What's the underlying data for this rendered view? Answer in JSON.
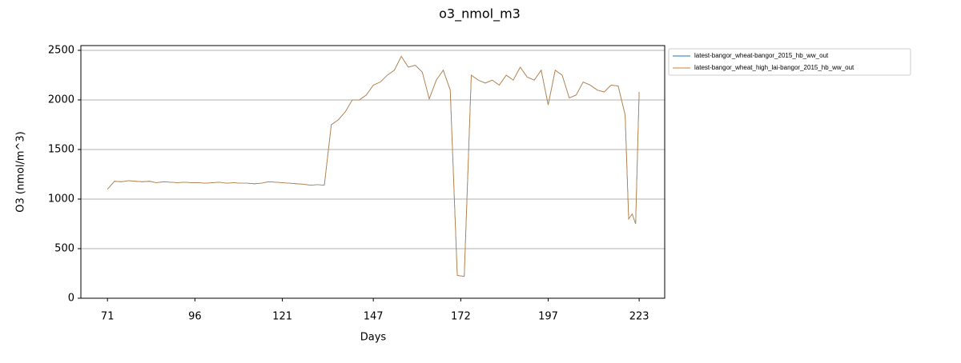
{
  "chart_data": {
    "type": "line",
    "title": "o3_nmol_m3",
    "x_label": "Days",
    "y_label": "O3 (nmol/m^3)",
    "x": [
      71,
      73,
      75,
      77,
      79,
      81,
      83,
      85,
      87,
      89,
      91,
      93,
      95,
      97,
      99,
      101,
      103,
      105,
      107,
      109,
      111,
      113,
      115,
      117,
      119,
      121,
      123,
      125,
      127,
      129,
      131,
      133,
      135,
      137,
      139,
      141,
      143,
      145,
      147,
      149,
      151,
      153,
      155,
      157,
      159,
      161,
      163,
      165,
      167,
      169,
      171,
      173,
      175,
      177,
      179,
      181,
      183,
      185,
      187,
      189,
      191,
      193,
      195,
      197,
      199,
      201,
      203,
      205,
      207,
      209,
      211,
      213,
      215,
      217,
      219,
      220,
      221,
      222,
      223
    ],
    "series": [
      {
        "name": "latest-bangor_wheat-bangor_2015_hb_ww_out",
        "color": "#1f77b4",
        "values": [
          1100,
          1180,
          1175,
          1185,
          1180,
          1175,
          1180,
          1165,
          1175,
          1170,
          1165,
          1170,
          1165,
          1165,
          1160,
          1165,
          1170,
          1160,
          1165,
          1160,
          1160,
          1155,
          1160,
          1175,
          1170,
          1165,
          1160,
          1155,
          1150,
          1140,
          1145,
          1140,
          1750,
          1800,
          1880,
          2000,
          2000,
          2050,
          2150,
          2180,
          2250,
          2300,
          2440,
          2330,
          2350,
          2280,
          2010,
          2200,
          2300,
          2100,
          230,
          220,
          2250,
          2200,
          2170,
          2200,
          2150,
          2250,
          2200,
          2330,
          2230,
          2200,
          2300,
          1950,
          2300,
          2250,
          2020,
          2050,
          2180,
          2150,
          2100,
          2080,
          2150,
          2140,
          1850,
          800,
          850,
          750,
          2080
        ]
      },
      {
        "name": "latest-bangor_wheat_high_lai-bangor_2015_hb_ww_out",
        "color": "#c8823a",
        "values": [
          1100,
          1180,
          1175,
          1185,
          1180,
          1175,
          1180,
          1165,
          1175,
          1170,
          1165,
          1170,
          1165,
          1165,
          1160,
          1165,
          1170,
          1160,
          1165,
          1160,
          1160,
          1155,
          1160,
          1175,
          1170,
          1165,
          1160,
          1155,
          1150,
          1140,
          1145,
          1140,
          1750,
          1800,
          1880,
          2000,
          2000,
          2050,
          2150,
          2180,
          2250,
          2300,
          2440,
          2330,
          2350,
          2280,
          2010,
          2200,
          2300,
          2100,
          230,
          220,
          2250,
          2200,
          2170,
          2200,
          2150,
          2250,
          2200,
          2330,
          2230,
          2200,
          2300,
          1950,
          2300,
          2250,
          2020,
          2050,
          2180,
          2150,
          2100,
          2080,
          2150,
          2140,
          1850,
          800,
          850,
          750,
          2080
        ]
      }
    ],
    "xlim": [
      63.4,
      230.3
    ],
    "xticks": [
      71,
      96,
      121,
      147,
      172,
      197,
      223
    ],
    "ylim": [
      0,
      2548
    ],
    "yticks": [
      0,
      500,
      1000,
      1500,
      2000,
      2500
    ],
    "grid": "y",
    "legend": "outside upper right"
  }
}
